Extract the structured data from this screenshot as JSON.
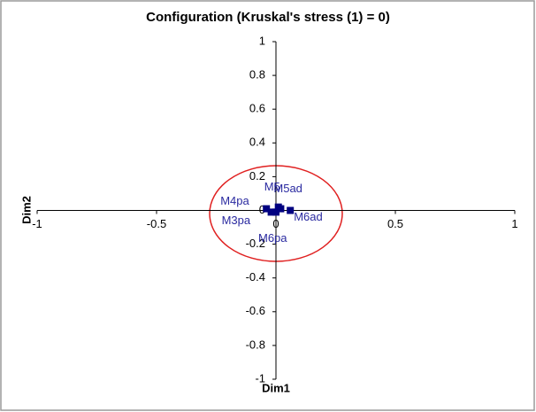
{
  "chart_data": {
    "type": "scatter",
    "title": "Configuration (Kruskal's stress (1) = 0)",
    "x_label": "Dim1",
    "y_label": "Dim2",
    "point_labels": [
      "M5",
      "M5ad",
      "M4pa",
      "M3pa",
      "M6ad",
      "M6pa"
    ],
    "x": [
      0.01,
      0.02,
      -0.04,
      -0.02,
      0.06,
      0.0
    ],
    "values": [
      0.02,
      0.01,
      0.01,
      -0.01,
      0.0,
      -0.01
    ],
    "color": "#000080",
    "xlim": [
      -1,
      1
    ],
    "ylim": [
      -1,
      1
    ],
    "xticks": [
      -1,
      -0.5,
      0,
      0.5,
      1
    ],
    "yticks": [
      -1,
      -0.8,
      -0.6,
      -0.4,
      -0.2,
      0,
      0.2,
      0.4,
      0.6,
      0.8,
      1
    ]
  }
}
